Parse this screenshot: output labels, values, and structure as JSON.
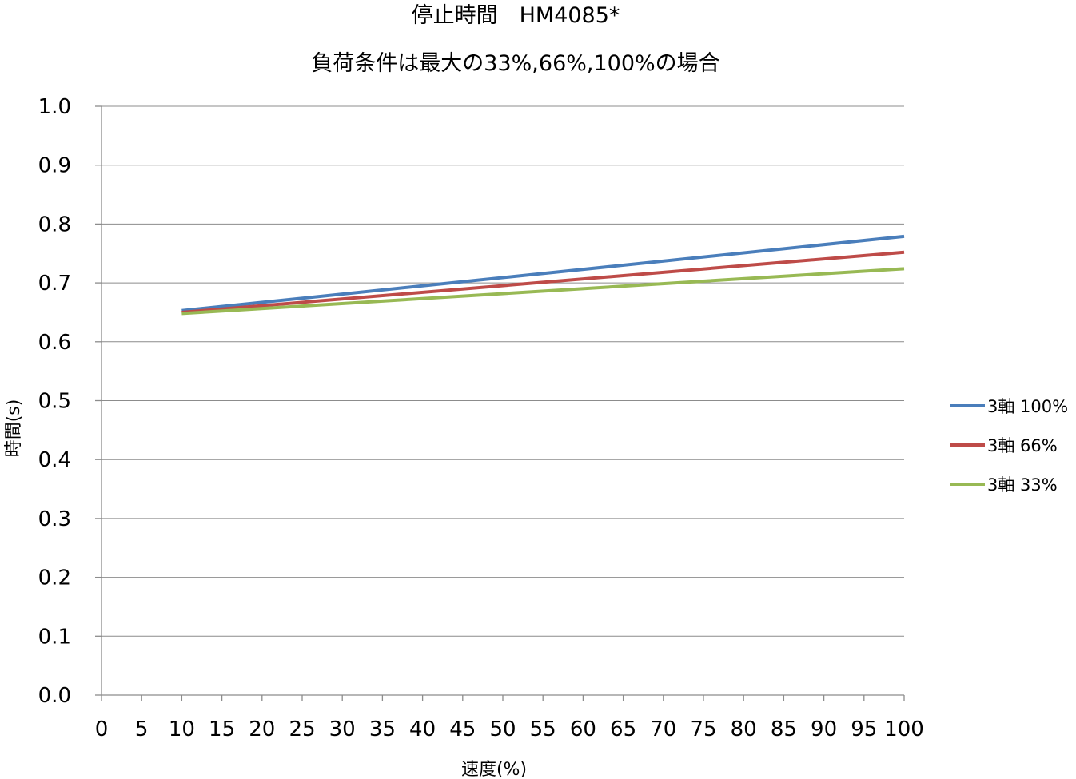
{
  "chart_data": {
    "type": "line",
    "title": [
      "停止時間　HM4085*",
      "負荷条件は最大の33%,66%,100%の場合"
    ],
    "xlabel": "速度(%)",
    "ylabel": "時間(s)",
    "xlim": [
      0,
      100
    ],
    "ylim": [
      0.0,
      1.0
    ],
    "x_ticks": [
      0,
      5,
      10,
      15,
      20,
      25,
      30,
      35,
      40,
      45,
      50,
      55,
      60,
      65,
      70,
      75,
      80,
      85,
      90,
      95,
      100
    ],
    "x_tick_labels": [
      "0",
      "5",
      "10",
      "15",
      "20",
      "25",
      "30",
      "35",
      "40",
      "45",
      "50",
      "55",
      "60",
      "65",
      "70",
      "75",
      "80",
      "85",
      "90",
      "95",
      "100"
    ],
    "y_ticks": [
      0.0,
      0.1,
      0.2,
      0.3,
      0.4,
      0.5,
      0.6,
      0.7,
      0.8,
      0.9,
      1.0
    ],
    "y_tick_labels": [
      "0.0",
      "0.1",
      "0.2",
      "0.3",
      "0.4",
      "0.5",
      "0.6",
      "0.7",
      "0.8",
      "0.9",
      "1.0"
    ],
    "grid": true,
    "legend_position": "right",
    "series": [
      {
        "name": "3軸 100%",
        "color": "#4a7ebb",
        "x": [
          10,
          100
        ],
        "y": [
          0.653,
          0.779
        ]
      },
      {
        "name": "3軸 66%",
        "color": "#be4b48",
        "x": [
          10,
          100
        ],
        "y": [
          0.65,
          0.752
        ]
      },
      {
        "name": "3軸 33%",
        "color": "#98b954",
        "x": [
          10,
          100
        ],
        "y": [
          0.648,
          0.724
        ]
      }
    ]
  }
}
